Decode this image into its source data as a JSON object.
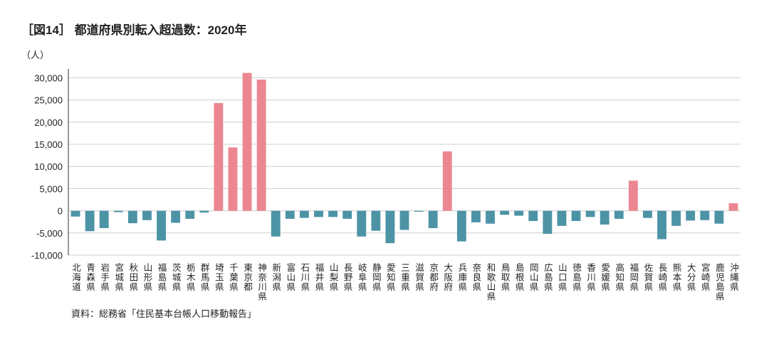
{
  "chart_data": {
    "type": "bar",
    "title": "［図14］ 都道府県別転入超過数：2020年",
    "y_label": "（人）",
    "source": "資料：総務省「住民基本台帳人口移動報告」",
    "categories": [
      "北海道",
      "青森県",
      "岩手県",
      "宮城県",
      "秋田県",
      "山形県",
      "福島県",
      "茨城県",
      "栃木県",
      "群馬県",
      "埼玉県",
      "千葉県",
      "東京都",
      "神奈川県",
      "新潟県",
      "富山県",
      "石川県",
      "福井県",
      "山梨県",
      "長野県",
      "岐阜県",
      "静岡県",
      "愛知県",
      "三重県",
      "滋賀県",
      "京都府",
      "大阪府",
      "兵庫県",
      "奈良県",
      "和歌山県",
      "鳥取県",
      "島根県",
      "岡山県",
      "広島県",
      "山口県",
      "徳島県",
      "香川県",
      "愛媛県",
      "高知県",
      "福岡県",
      "佐賀県",
      "長崎県",
      "熊本県",
      "大分県",
      "宮崎県",
      "鹿児島県",
      "沖縄県"
    ],
    "values": [
      -1300,
      -4600,
      -3900,
      -300,
      -2800,
      -2100,
      -6700,
      -2700,
      -1800,
      -400,
      24300,
      14300,
      31100,
      29600,
      -5800,
      -1800,
      -1600,
      -1400,
      -1400,
      -1800,
      -5800,
      -4500,
      -7300,
      -4300,
      -200,
      -3900,
      13400,
      -6900,
      -2600,
      -2900,
      -900,
      -1100,
      -2300,
      -5200,
      -3400,
      -2300,
      -1400,
      -3100,
      -1800,
      6800,
      -1600,
      -6400,
      -3400,
      -2200,
      -2100,
      -2900,
      1700
    ],
    "positive_color": "#ec8690",
    "negative_color": "#4d93a6",
    "ylim": [
      -10000,
      32000
    ],
    "yticks": [
      {
        "value": -10000,
        "label": "-10,000"
      },
      {
        "value": -5000,
        "label": "-5,000"
      },
      0,
      {
        "value": 5000,
        "label": "5,000"
      },
      {
        "value": 10000,
        "label": "10,000"
      },
      {
        "value": 15000,
        "label": "15,000"
      },
      {
        "value": 20000,
        "label": "20,000"
      },
      {
        "value": 25000,
        "label": "25,000"
      },
      {
        "value": 30000,
        "label": "30,000"
      }
    ],
    "grid": true
  }
}
